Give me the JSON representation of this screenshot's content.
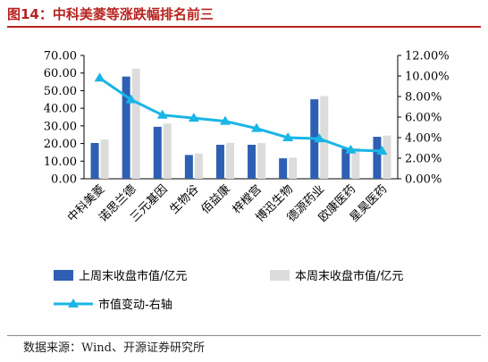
{
  "title": "图14：中科美菱等涨跌幅排名前三",
  "source": "数据来源：Wind、开源证券研究所",
  "colors": {
    "title": "#b8221e",
    "bar_last_week": "#2e5fb3",
    "bar_this_week": "#dcdcdc",
    "line_change": "#19b5e6"
  },
  "chart_data": {
    "type": "bar",
    "categories": [
      "中科美菱",
      "诺思兰德",
      "三元基因",
      "生物谷",
      "佰益康",
      "梓樘宫",
      "博迅生物",
      "德源药业",
      "欧康医药",
      "星昊医药"
    ],
    "series": [
      {
        "name": "上周末收盘市值/亿元",
        "type": "bar",
        "axis": "left",
        "values": [
          20.3,
          58.0,
          29.5,
          13.5,
          19.3,
          19.3,
          11.6,
          45.1,
          17.0,
          23.8
        ]
      },
      {
        "name": "本周末收盘市值/亿元",
        "type": "bar",
        "axis": "left",
        "values": [
          22.3,
          62.5,
          31.3,
          14.3,
          20.4,
          20.3,
          12.0,
          46.9,
          17.5,
          24.5
        ]
      },
      {
        "name": "市值变动-右轴",
        "type": "line",
        "axis": "right",
        "values": [
          0.098,
          0.077,
          0.062,
          0.059,
          0.056,
          0.049,
          0.04,
          0.039,
          0.028,
          0.027
        ]
      }
    ],
    "left_axis": {
      "min": 0,
      "max": 70,
      "step": 10,
      "tick_labels": [
        "0.00",
        "10.00",
        "20.00",
        "30.00",
        "40.00",
        "50.00",
        "60.00",
        "70.00"
      ]
    },
    "right_axis": {
      "min": 0,
      "max": 0.12,
      "step": 0.02,
      "tick_labels": [
        "0.00%",
        "2.00%",
        "4.00%",
        "6.00%",
        "8.00%",
        "10.00%",
        "12.00%"
      ]
    },
    "grid": false,
    "legend_position": "bottom"
  }
}
